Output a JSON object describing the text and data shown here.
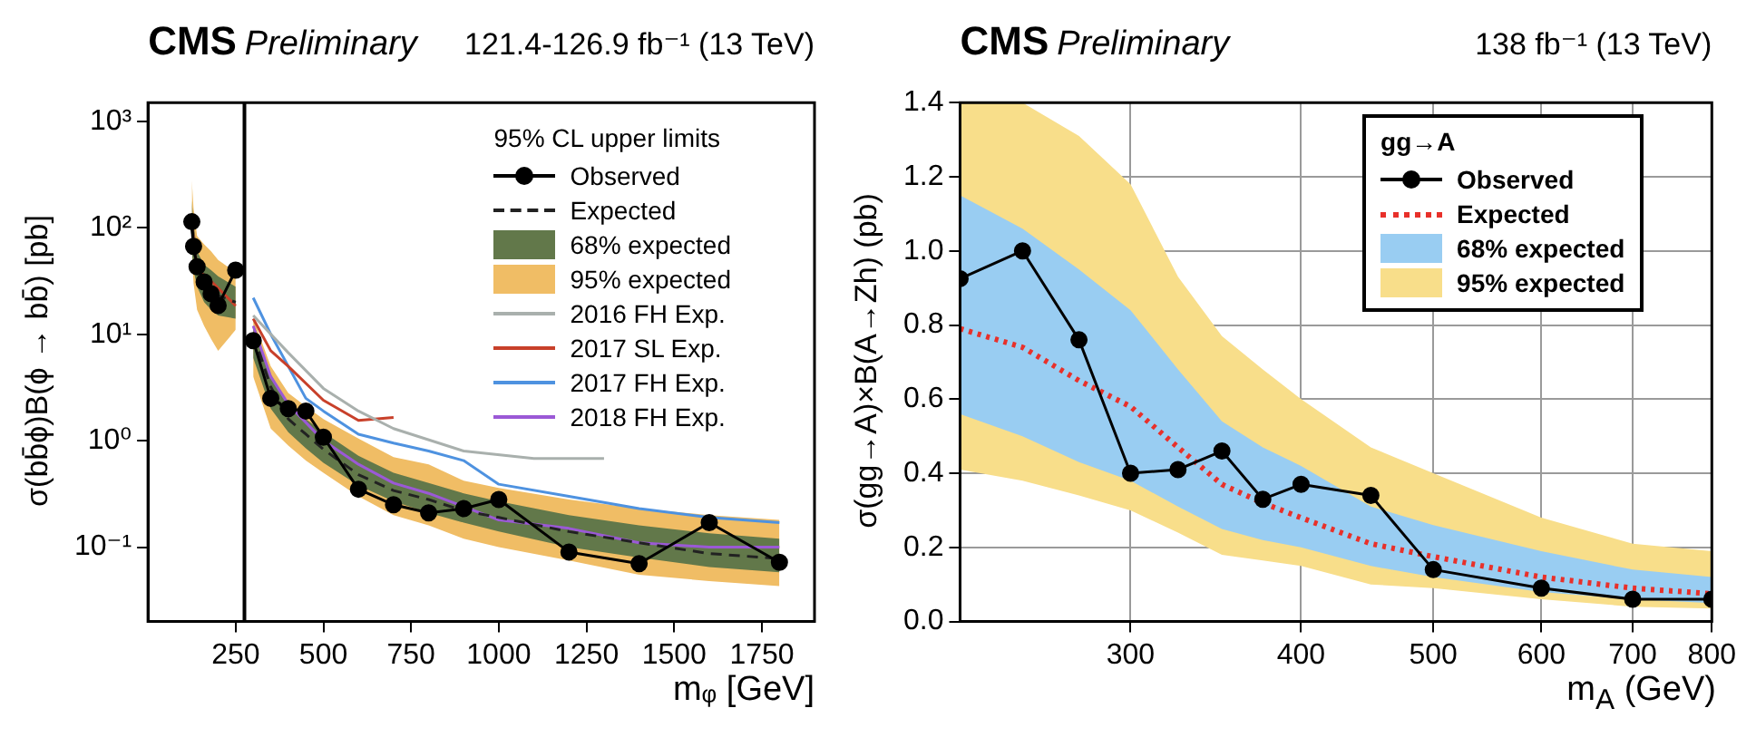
{
  "chart_data": [
    {
      "type": "line",
      "title": "CMS",
      "subtitle": "Preliminary",
      "annotations": [
        "121.4-126.9 fb⁻¹ (13 TeV)"
      ],
      "xlabel": "mᵩ [GeV]",
      "ylabel": "σ(bb̄ϕ)B(ϕ → bb̄) [pb]",
      "legend_title": "95% CL upper limits",
      "legend": "top right",
      "log": "y",
      "grid": false,
      "xlim": [
        0,
        1900
      ],
      "xticks": [
        250,
        500,
        750,
        1000,
        1250,
        1500,
        1750
      ],
      "ylim": [
        0.02,
        1500
      ],
      "yticks": [
        {
          "value": 0.1,
          "label": "10⁻¹"
        },
        {
          "value": 1,
          "label": "10⁰"
        },
        {
          "value": 10,
          "label": "10¹"
        },
        {
          "value": 100,
          "label": "10²"
        },
        {
          "value": 1000,
          "label": "10³"
        }
      ],
      "ref_lines": [
        {
          "axis": "x",
          "value": 275,
          "color": "#000000"
        }
      ],
      "x": [
        125,
        130,
        140,
        160,
        180,
        200,
        250,
        275,
        300,
        350,
        400,
        450,
        500,
        600,
        700,
        800,
        900,
        1000,
        1200,
        1400,
        1600,
        1800
      ],
      "series": [
        {
          "name": "Observed",
          "color": "#000000",
          "marker": "circle",
          "values": [
            114,
            67,
            43,
            31,
            24,
            18.6,
            40,
            null,
            8.7,
            2.5,
            2.0,
            1.9,
            1.08,
            0.35,
            0.25,
            0.21,
            0.23,
            0.28,
            0.09,
            0.07,
            0.17,
            0.072
          ]
        },
        {
          "name": "Expected",
          "color": "#222222",
          "line_style": "dashed",
          "values": [
            100,
            65,
            42,
            32,
            27,
            23,
            20,
            null,
            10,
            3.2,
            1.6,
            1.15,
            0.83,
            0.48,
            0.34,
            0.28,
            0.22,
            0.19,
            0.14,
            0.11,
            0.087,
            0.078
          ]
        },
        {
          "name": "68% expected",
          "color": "#62784a",
          "values": [
            100,
            65,
            42,
            32,
            27,
            23,
            20,
            null,
            10,
            3.2,
            1.6,
            1.15,
            0.83,
            0.48,
            0.34,
            0.28,
            0.22,
            0.19,
            0.14,
            0.11,
            0.087,
            0.078
          ],
          "lower": [
            60,
            40,
            28,
            20,
            17,
            15,
            14,
            null,
            6,
            2,
            1.2,
            0.85,
            0.62,
            0.38,
            0.27,
            0.21,
            0.17,
            0.14,
            0.1,
            0.08,
            0.065,
            0.058
          ],
          "upper": [
            180,
            110,
            60,
            45,
            40,
            35,
            28,
            null,
            12,
            4.2,
            2.2,
            1.6,
            1.2,
            0.72,
            0.5,
            0.4,
            0.32,
            0.27,
            0.2,
            0.16,
            0.135,
            0.12
          ]
        },
        {
          "name": "95% expected",
          "color": "#f0bd65",
          "values": [
            null,
            null,
            null,
            null,
            null,
            null,
            null,
            null,
            null,
            null,
            null,
            null,
            null,
            null,
            null,
            null,
            null,
            null,
            null,
            null,
            null,
            null
          ],
          "lower": [
            60,
            30,
            17,
            12,
            9,
            7,
            11,
            null,
            4,
            1.3,
            0.9,
            0.65,
            0.5,
            0.3,
            0.2,
            0.16,
            0.12,
            0.1,
            0.075,
            0.055,
            0.048,
            0.043
          ],
          "upper": [
            280,
            150,
            84,
            70,
            60,
            50,
            38,
            null,
            14,
            5,
            2.8,
            2.1,
            1.6,
            1.05,
            0.7,
            0.6,
            0.42,
            0.36,
            0.28,
            0.23,
            0.2,
            0.18
          ]
        },
        {
          "name": "2016 FH Exp.",
          "color": "#a9b0ad",
          "x": [
            300,
            400,
            500,
            600,
            700,
            900,
            1100,
            1300
          ],
          "values": [
            15,
            6.7,
            3.1,
            1.9,
            1.3,
            0.8,
            0.68,
            0.68
          ]
        },
        {
          "name": "2017 SL Exp.",
          "color": "#c8402a",
          "x": [
            125,
            140,
            170,
            250,
            275,
            300,
            350,
            400,
            500,
            600,
            700
          ],
          "values": [
            110,
            40,
            34,
            18.5,
            null,
            14,
            7,
            5,
            2.4,
            1.55,
            1.65
          ]
        },
        {
          "name": "2017 FH Exp.",
          "color": "#4e92e0",
          "x": [
            300,
            350,
            450,
            500,
            600,
            700,
            800,
            900,
            1000,
            1200,
            1400,
            1600,
            1800
          ],
          "values": [
            22,
            10,
            2.5,
            1.9,
            1.15,
            0.95,
            0.8,
            0.65,
            0.39,
            0.3,
            0.23,
            0.19,
            0.17
          ]
        },
        {
          "name": "2018 FH Exp.",
          "color": "#9b59d6",
          "x": [
            300,
            350,
            400,
            500,
            600,
            700,
            800,
            900,
            1000,
            1200,
            1400,
            1600,
            1800
          ],
          "values": [
            12,
            4,
            2.2,
            1.0,
            0.6,
            0.4,
            0.32,
            0.24,
            0.18,
            0.15,
            0.11,
            0.1,
            0.1
          ]
        }
      ]
    },
    {
      "type": "line",
      "title": "CMS",
      "subtitle": "Preliminary",
      "annotations": [
        "138 fb⁻¹ (13 TeV)"
      ],
      "xlabel": "m$_{A}$ (GeV)",
      "ylabel": "σ(gg→A)×B(A→Zh) (pb)",
      "legend_title": "gg→A",
      "legend": "top right",
      "log": "x",
      "grid": true,
      "xlim": [
        225,
        800
      ],
      "xticks": [
        300,
        400,
        500,
        600,
        700,
        800
      ],
      "ylim": [
        0,
        1.4
      ],
      "yticks": [
        {
          "value": 0,
          "label": "0.0"
        },
        0.2,
        0.4,
        0.6,
        0.8,
        {
          "value": 1,
          "label": "1.0"
        },
        1.2,
        1.4
      ],
      "x": [
        225,
        250,
        275,
        300,
        325,
        350,
        375,
        400,
        450,
        500,
        600,
        700,
        800
      ],
      "series": [
        {
          "name": "Observed",
          "color": "#000000",
          "marker": "circle",
          "values": [
            0.925,
            1.0,
            0.76,
            0.4,
            0.41,
            0.46,
            0.33,
            0.37,
            0.34,
            0.14,
            0.09,
            0.06,
            0.06
          ]
        },
        {
          "name": "Expected",
          "color": "#e8302a",
          "line_style": "dotted",
          "values": [
            0.79,
            0.74,
            0.65,
            0.58,
            0.47,
            0.37,
            0.32,
            0.28,
            0.21,
            0.175,
            0.12,
            0.09,
            0.075
          ]
        },
        {
          "name": "68% expected",
          "color": "#99cdf2",
          "values": [
            null,
            null,
            null,
            null,
            null,
            null,
            null,
            null,
            null,
            null,
            null,
            null,
            null
          ],
          "lower": [
            0.56,
            0.5,
            0.43,
            0.38,
            0.31,
            0.25,
            0.22,
            0.2,
            0.15,
            0.12,
            0.08,
            0.06,
            0.05
          ],
          "upper": [
            1.15,
            1.06,
            0.95,
            0.84,
            0.68,
            0.54,
            0.47,
            0.42,
            0.31,
            0.26,
            0.19,
            0.14,
            0.12
          ]
        },
        {
          "name": "95% expected",
          "color": "#f8de8a",
          "values": [
            null,
            null,
            null,
            null,
            null,
            null,
            null,
            null,
            null,
            null,
            null,
            null,
            null
          ],
          "lower": [
            0.41,
            0.38,
            0.34,
            0.3,
            0.24,
            0.18,
            0.165,
            0.15,
            0.1,
            0.09,
            0.06,
            0.04,
            0.035
          ],
          "upper": [
            1.4,
            1.4,
            1.31,
            1.18,
            0.93,
            0.77,
            0.68,
            0.6,
            0.47,
            0.4,
            0.28,
            0.21,
            0.19
          ]
        }
      ]
    }
  ]
}
